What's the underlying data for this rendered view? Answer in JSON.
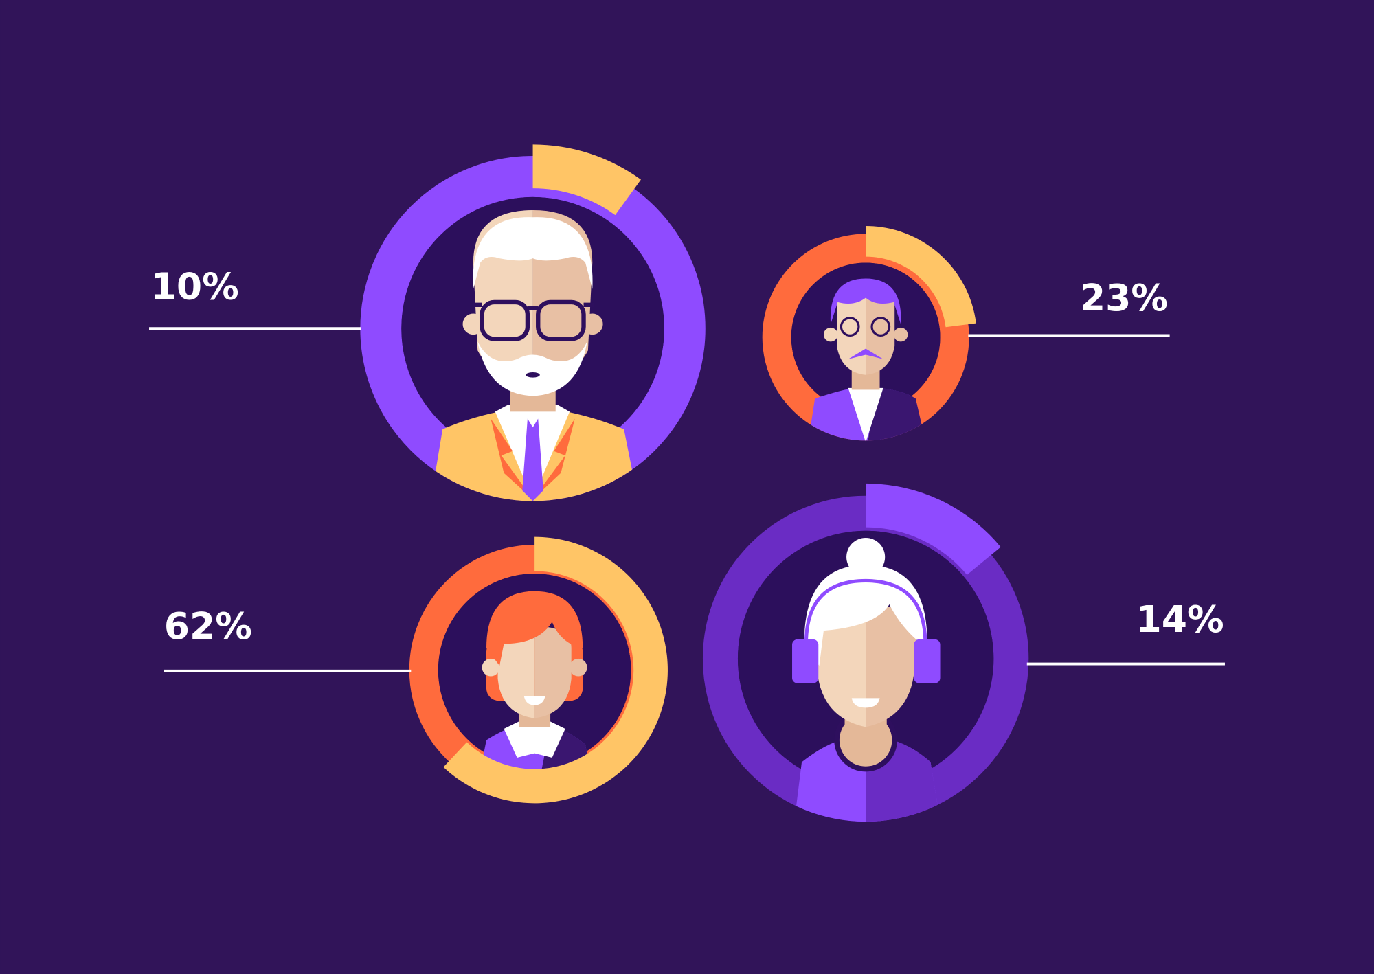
{
  "chart_data": [
    {
      "type": "donut",
      "values": [
        10
      ],
      "value_labels": [
        "10%"
      ],
      "color": "#ffc566",
      "track_color": "#8f4bff"
    },
    {
      "type": "donut",
      "values": [
        23
      ],
      "value_labels": [
        "23%"
      ],
      "color": "#ffc566",
      "track_color": "#ff6b3d"
    },
    {
      "type": "donut",
      "values": [
        62
      ],
      "value_labels": [
        "62%"
      ],
      "color": "#ffc566",
      "track_color": "#ff6b3d"
    },
    {
      "type": "donut",
      "values": [
        14
      ],
      "value_labels": [
        "14%"
      ],
      "color": "#8f4bff",
      "track_color": "#6a2cc4"
    }
  ]
}
